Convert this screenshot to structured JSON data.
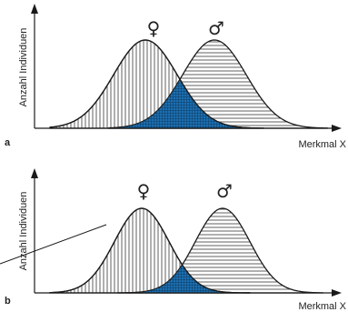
{
  "panels": [
    {
      "id": "a",
      "letter": "a",
      "y_axis_label": "Anzahl Individuen",
      "x_axis_label": "Merkmal X",
      "female_symbol": "♀",
      "male_symbol": "♂"
    },
    {
      "id": "b",
      "letter": "b",
      "y_axis_label": "Anzahl Individuen",
      "x_axis_label": "Merkmal X",
      "female_symbol": "♀",
      "male_symbol": "♂"
    }
  ],
  "colors": {
    "overlap_fill": "#1d6fb0",
    "line": "#1a1a1a",
    "background": "#ffffff"
  }
}
